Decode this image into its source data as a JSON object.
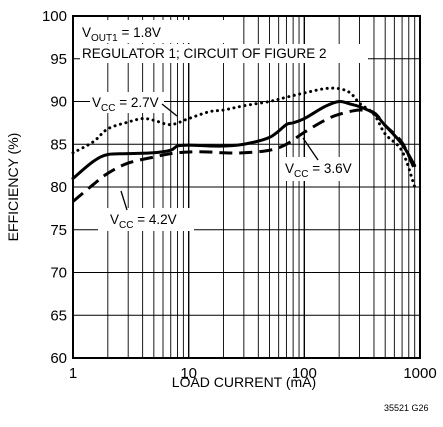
{
  "chart_data": {
    "type": "line",
    "xlabel": "LOAD CURRENT (mA)",
    "ylabel": "EFFICIENCY (%)",
    "x_scale": "log",
    "xlim": [
      1,
      1000
    ],
    "ylim": [
      60,
      100
    ],
    "x_ticks": [
      "1",
      "10",
      "100",
      "1000"
    ],
    "y_ticks": [
      "60",
      "65",
      "70",
      "75",
      "80",
      "85",
      "90",
      "95",
      "100"
    ],
    "grid": true,
    "annotations": {
      "vout_prefix": "V",
      "vout_sub": "OUT1",
      "vout_value": " = 1.8V",
      "circuit": "REGULATOR 1; CIRCUIT OF FIGURE 2"
    },
    "figure_code": "35521 G26",
    "series": [
      {
        "label_prefix": "V",
        "label_sub": "CC",
        "label_value": " = 2.7V",
        "style": "dotted",
        "x": [
          1,
          1.5,
          2,
          3,
          4,
          5,
          7,
          10,
          15,
          20,
          30,
          50,
          70,
          100,
          150,
          200,
          250,
          300,
          400,
          500,
          700,
          900
        ],
        "y": [
          84.0,
          85.3,
          86.8,
          87.6,
          88.0,
          87.8,
          87.3,
          88.0,
          88.8,
          89.0,
          89.5,
          90.0,
          90.5,
          91.0,
          91.5,
          91.5,
          91.0,
          89.8,
          88.5,
          86.2,
          84.2,
          80.0
        ]
      },
      {
        "label_prefix": "V",
        "label_sub": "CC",
        "label_value": " = 3.6V",
        "style": "solid",
        "x": [
          1,
          1.5,
          2,
          3,
          5,
          7,
          8,
          10,
          15,
          20,
          30,
          50,
          70,
          80,
          100,
          150,
          200,
          250,
          300,
          400,
          500,
          700,
          900
        ],
        "y": [
          81.0,
          83.0,
          83.8,
          83.9,
          84.0,
          84.3,
          84.8,
          84.9,
          84.8,
          84.8,
          85.0,
          85.8,
          87.3,
          87.5,
          88.0,
          89.4,
          90.0,
          89.7,
          89.4,
          88.6,
          87.2,
          85.0,
          82.5
        ]
      },
      {
        "label_prefix": "V",
        "label_sub": "CC",
        "label_value": " = 4.2V",
        "style": "dashed",
        "x": [
          1,
          1.5,
          2,
          3,
          5,
          7,
          10,
          15,
          20,
          30,
          50,
          70,
          100,
          150,
          200,
          300,
          400,
          500,
          700,
          900
        ],
        "y": [
          78.3,
          80.3,
          81.6,
          82.8,
          83.5,
          83.9,
          84.1,
          84.1,
          84.0,
          84.0,
          84.3,
          85.0,
          86.4,
          87.8,
          88.5,
          89.0,
          88.7,
          87.2,
          85.2,
          82.0
        ]
      }
    ]
  }
}
